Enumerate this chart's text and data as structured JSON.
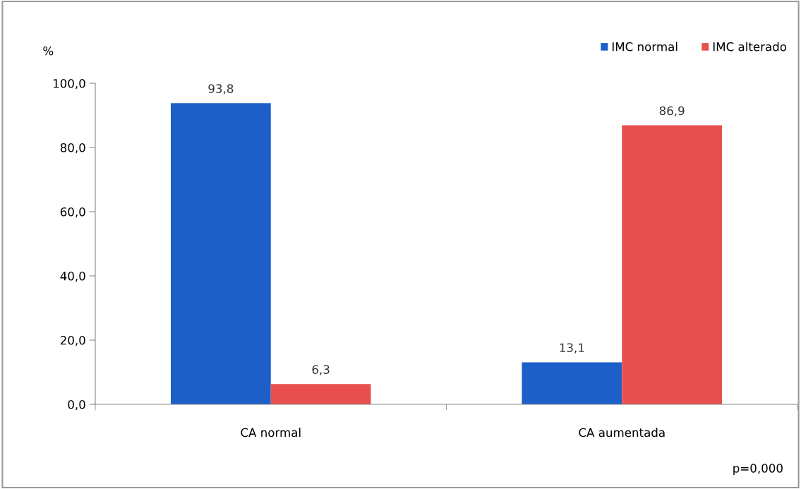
{
  "chart_data": {
    "type": "bar",
    "ylabel": "%",
    "categories": [
      "CA normal",
      "CA aumentada"
    ],
    "series": [
      {
        "name": "IMC normal",
        "color": "#1d5fc9",
        "values": [
          93.8,
          13.1
        ],
        "value_labels": [
          "93,8",
          "13,1"
        ]
      },
      {
        "name": "IMC alterado",
        "color": "#e8504f",
        "values": [
          6.3,
          86.9
        ],
        "value_labels": [
          "6,3",
          "86,9"
        ]
      }
    ],
    "ylim": [
      0,
      100
    ],
    "yticks": [
      {
        "value": 0,
        "label": "0,0"
      },
      {
        "value": 20,
        "label": "20,0"
      },
      {
        "value": 40,
        "label": "40,0"
      },
      {
        "value": 60,
        "label": "60,0"
      },
      {
        "value": 80,
        "label": "80,0"
      },
      {
        "value": 100,
        "label": "100,0"
      }
    ],
    "grid": false,
    "legend": "top right",
    "annotations": [
      "p=0,000"
    ]
  }
}
